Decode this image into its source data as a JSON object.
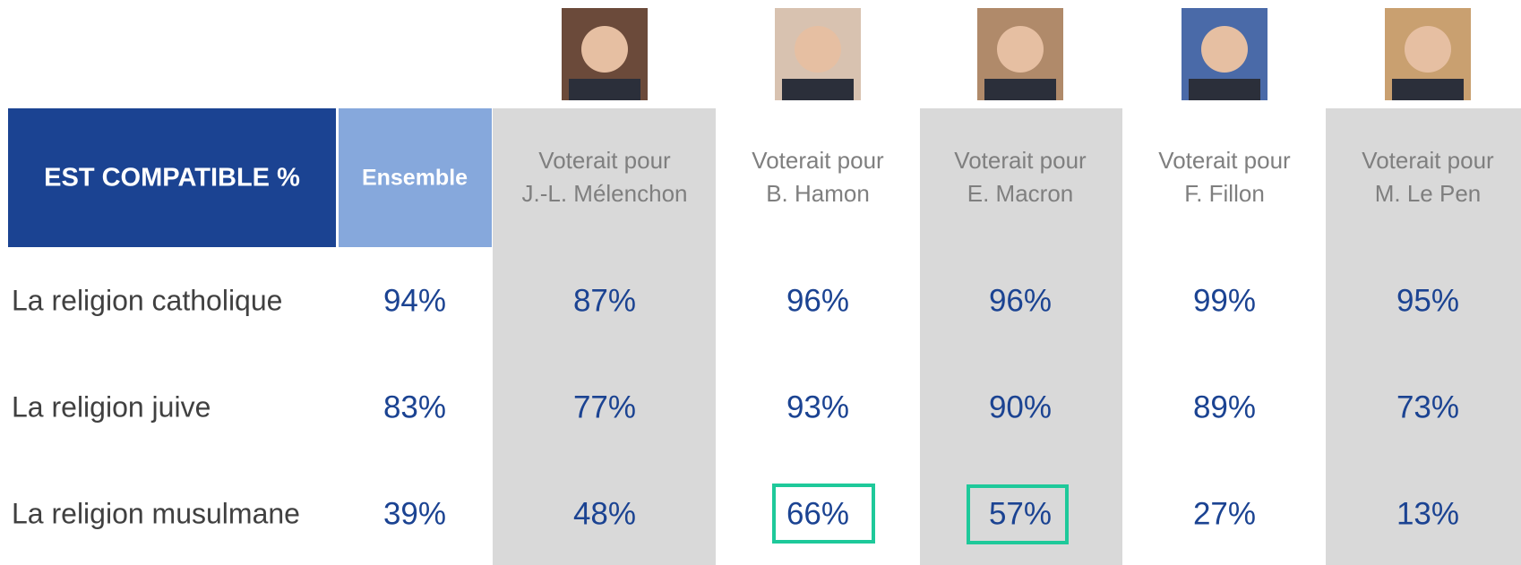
{
  "table": {
    "title": "EST COMPATIBLE %",
    "columns": [
      {
        "lines": [
          "Ensemble"
        ]
      },
      {
        "lines": [
          "Voterait pour",
          "J.-L. Mélenchon"
        ]
      },
      {
        "lines": [
          "Voterait pour",
          "B. Hamon"
        ]
      },
      {
        "lines": [
          "Voterait pour",
          "E. Macron"
        ]
      },
      {
        "lines": [
          "Voterait pour",
          "F. Fillon"
        ]
      },
      {
        "lines": [
          "Voterait pour",
          "M. Le Pen"
        ]
      }
    ],
    "rows": [
      {
        "label": "La religion catholique",
        "cells": [
          "94%",
          "87%",
          "96%",
          "96%",
          "99%",
          "95%"
        ]
      },
      {
        "label": "La religion juive",
        "cells": [
          "83%",
          "77%",
          "93%",
          "90%",
          "89%",
          "73%"
        ]
      },
      {
        "label": "La religion musulmane",
        "cells": [
          "39%",
          "48%",
          "66%",
          "57%",
          "27%",
          "13%"
        ]
      }
    ]
  }
}
